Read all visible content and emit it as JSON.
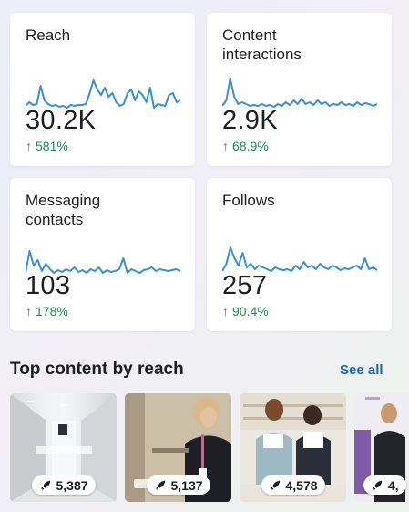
{
  "cards": [
    {
      "title": "Reach",
      "value": "30.2K",
      "change": "581%",
      "series": [
        8,
        12,
        9,
        10,
        30,
        14,
        10,
        8,
        9,
        7,
        8,
        6,
        9,
        8,
        9,
        9,
        10,
        22,
        36,
        26,
        20,
        28,
        18,
        22,
        12,
        8,
        10,
        22,
        26,
        14,
        24,
        20,
        12,
        28,
        6,
        10,
        9,
        8,
        20,
        22,
        12,
        14
      ]
    },
    {
      "title": "Content\ninteractions",
      "value": "2.9K",
      "change": "68.9%",
      "series": [
        8,
        14,
        38,
        18,
        10,
        12,
        10,
        8,
        9,
        8,
        10,
        8,
        9,
        7,
        10,
        8,
        12,
        9,
        14,
        10,
        16,
        10,
        12,
        9,
        14,
        10,
        12,
        8,
        10,
        9,
        12,
        9,
        10,
        8,
        12,
        9,
        11,
        10,
        8,
        10
      ]
    },
    {
      "title": "Messaging\ncontacts",
      "value": "103",
      "change": "178%",
      "series": [
        6,
        30,
        14,
        20,
        8,
        16,
        10,
        6,
        9,
        7,
        10,
        8,
        12,
        7,
        9,
        6,
        10,
        8,
        12,
        6,
        9,
        7,
        8,
        10,
        22,
        6,
        10,
        8,
        6,
        9,
        10,
        12,
        8,
        10,
        9,
        8,
        9,
        10,
        8
      ]
    },
    {
      "title": "Follows",
      "value": "257",
      "change": "90.4%",
      "series": [
        8,
        16,
        34,
        22,
        14,
        28,
        12,
        16,
        10,
        14,
        12,
        10,
        8,
        12,
        10,
        9,
        10,
        8,
        14,
        10,
        18,
        12,
        14,
        10,
        16,
        12,
        10,
        14,
        12,
        9,
        11,
        10,
        12,
        14,
        10,
        22,
        10,
        12,
        9
      ]
    }
  ],
  "colors": {
    "line": "#3b8fd3",
    "positive": "#1e8a4f",
    "link": "#1665c0"
  },
  "icons": {
    "change": "up-arrow-icon",
    "reach": "rocket-icon"
  },
  "arrow_glyph": "↑",
  "section": {
    "title": "Top content by reach",
    "see_all": "See all"
  },
  "thumbnails": [
    {
      "value": "5,387",
      "description": "hallway"
    },
    {
      "value": "5,137",
      "description": "woman in scrubs at door"
    },
    {
      "value": "4,578",
      "description": "two women holding signs"
    },
    {
      "value": "4,",
      "description": "woman in scrubs"
    }
  ]
}
